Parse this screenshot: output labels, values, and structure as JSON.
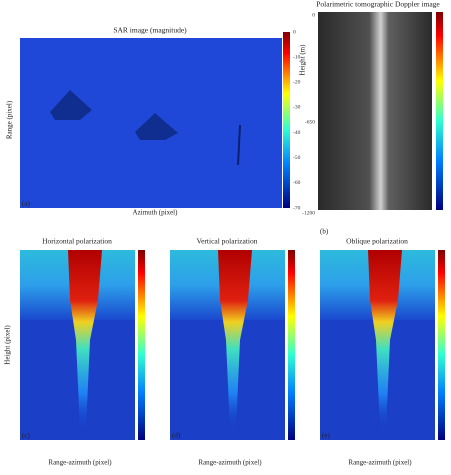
{
  "panel_a": {
    "title": "SAR image (magnitude)",
    "x_label": "Azimuth (pixel)",
    "y_label": "Range (pixel)",
    "tag": "(a)",
    "colorbar_ticks": [
      0,
      -10,
      -20,
      -30,
      -40,
      -50,
      -60,
      -70
    ]
  },
  "panel_b": {
    "title": "Polarimetric tomographic Doppler image",
    "y_label": "Height (m)",
    "tag": "(b)",
    "y_ticks": [
      0,
      -650,
      -1200
    ]
  },
  "panels_bottom": [
    {
      "title": "Horizontal polarization",
      "tag": "(c)",
      "x_label": "Range-azimuth (pixel)"
    },
    {
      "title": "Vertical polarization",
      "tag": "(d)",
      "x_label": "Range-azimuth (pixel)"
    },
    {
      "title": "Oblique polarization",
      "tag": "(e)",
      "x_label": "Range-azimuth (pixel)"
    }
  ],
  "y_label_bottom": "Height (pixel)"
}
